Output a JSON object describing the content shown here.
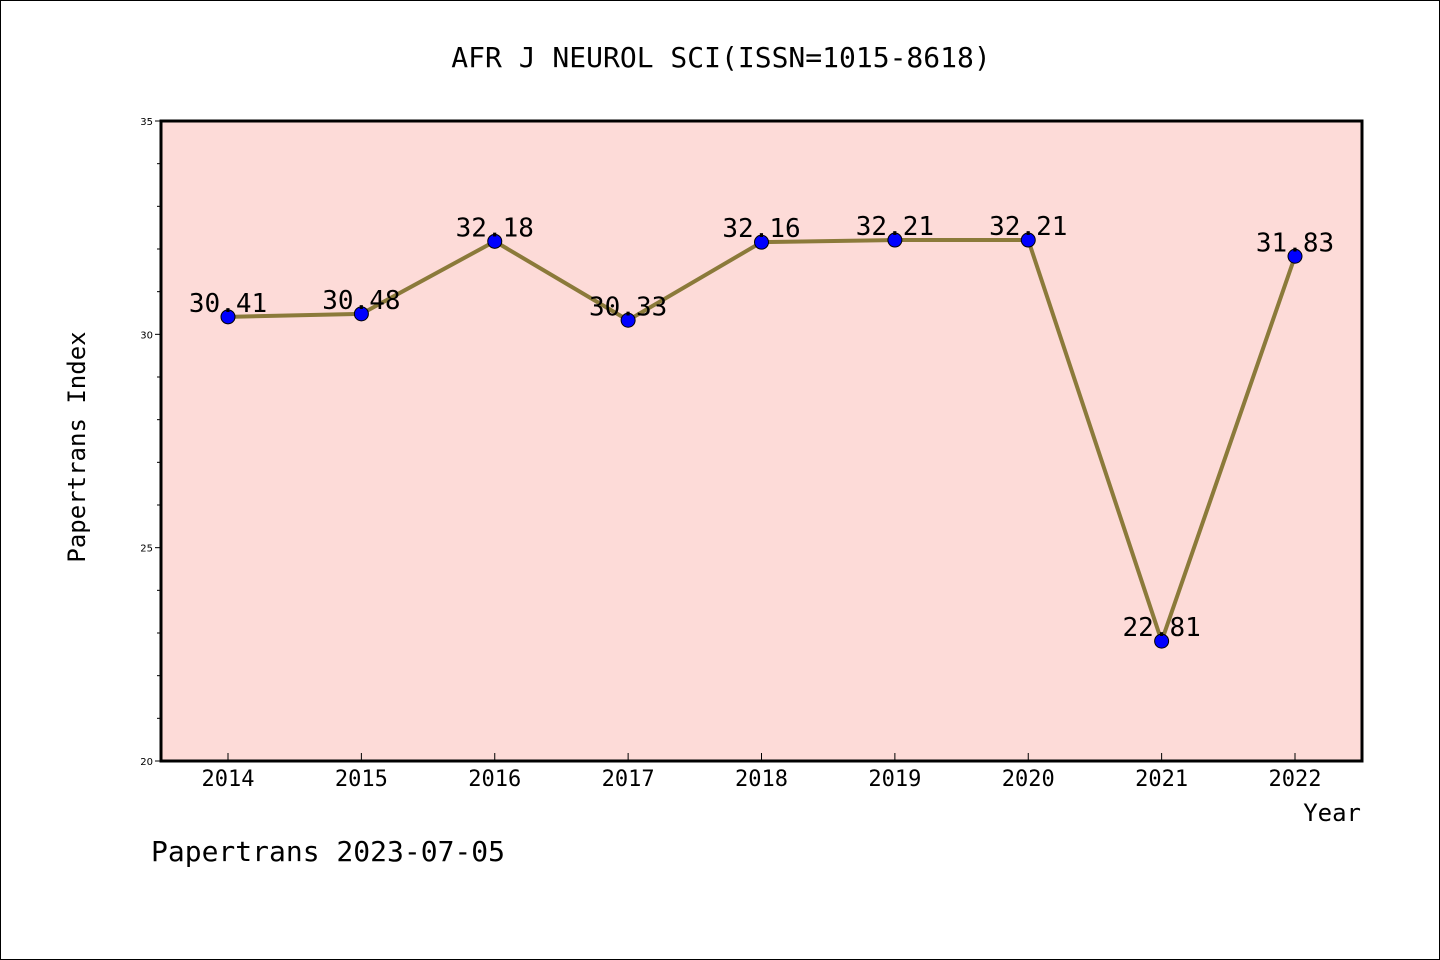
{
  "chart_data": {
    "type": "line",
    "title": "AFR J NEUROL SCI(ISSN=1015-8618)",
    "xlabel": "Year",
    "ylabel": "Papertrans Index",
    "categories": [
      "2014",
      "2015",
      "2016",
      "2017",
      "2018",
      "2019",
      "2020",
      "2021",
      "2022"
    ],
    "series": [
      {
        "values": [
          30.41,
          30.48,
          32.18,
          30.33,
          32.16,
          32.21,
          32.21,
          22.81,
          31.83
        ],
        "data_labels": [
          "30.41",
          "30.48",
          "32.18",
          "30.33",
          "32.16",
          "32.21",
          "32.21",
          "22.81",
          "31.83"
        ],
        "line_color": "#8b7a3a",
        "marker_color": "#0000ff"
      }
    ],
    "ylim": [
      20,
      35
    ],
    "yticks": [
      "20",
      "25",
      "30",
      "35"
    ],
    "grid": false,
    "plot_background": "#fddbd8"
  },
  "footer": "Papertrans 2023-07-05"
}
